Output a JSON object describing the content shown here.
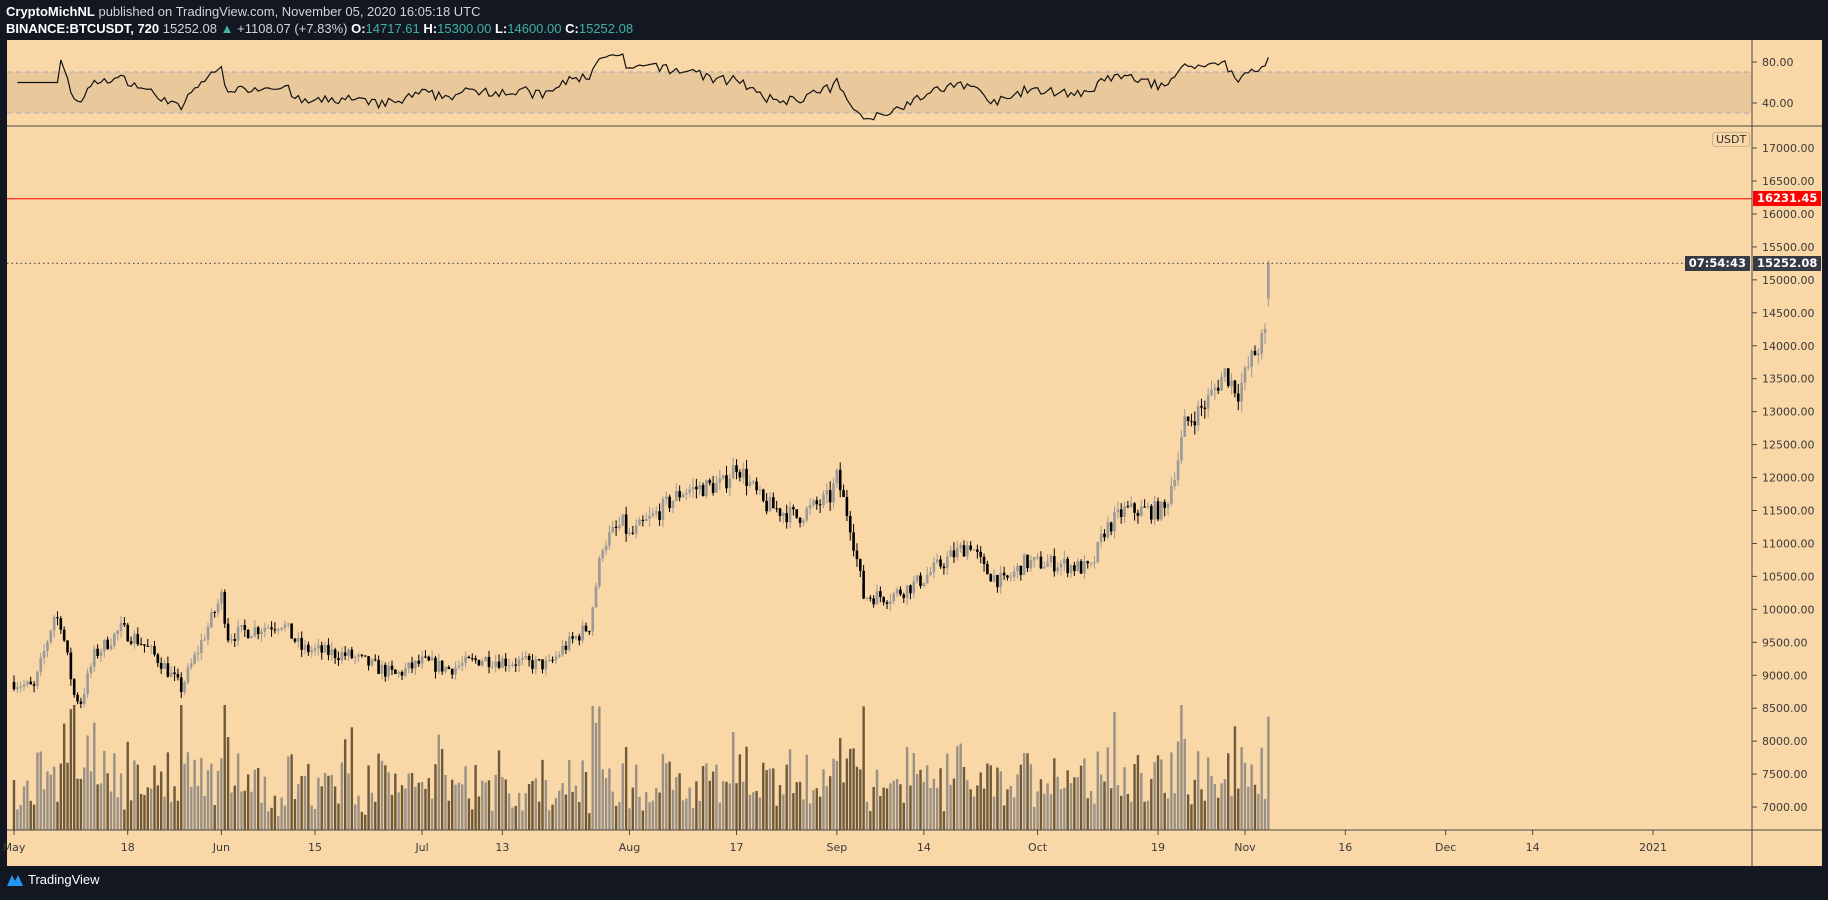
{
  "header": {
    "author": "CryptoMichNL",
    "published": "published on TradingView.com, November 05, 2020 16:05:18 UTC",
    "symbol": "BINANCE:BTCUSDT, 720",
    "last": "15252.08",
    "change": "+1108.07 (+7.83%)",
    "o_label": "O:",
    "o": "14717.61",
    "h_label": "H:",
    "h": "15300.00",
    "l_label": "L:",
    "l": "14600.00",
    "c_label": "C:",
    "c": "15252.08"
  },
  "price_axis": {
    "currency": "USDT",
    "ticks": [
      "17000.00",
      "16500.00",
      "16000.00",
      "15500.00",
      "15000.00",
      "14500.00",
      "14000.00",
      "13500.00",
      "13000.00",
      "12500.00",
      "12000.00",
      "11500.00",
      "11000.00",
      "10500.00",
      "10000.00",
      "9500.00",
      "9000.00",
      "8500.00",
      "8000.00",
      "7500.00",
      "7000.00"
    ],
    "alert_line": "16231.45",
    "current_price": "15252.08",
    "countdown": "07:54:43"
  },
  "rsi_axis": {
    "ticks": [
      "80.00",
      "40.00"
    ]
  },
  "time_axis": {
    "labels": [
      {
        "day": 0,
        "text": "May"
      },
      {
        "day": 17,
        "text": "18"
      },
      {
        "day": 31,
        "text": "Jun"
      },
      {
        "day": 45,
        "text": "15"
      },
      {
        "day": 61,
        "text": "Jul"
      },
      {
        "day": 73,
        "text": "13"
      },
      {
        "day": 92,
        "text": "Aug"
      },
      {
        "day": 108,
        "text": "17"
      },
      {
        "day": 123,
        "text": "Sep"
      },
      {
        "day": 136,
        "text": "14"
      },
      {
        "day": 153,
        "text": "Oct"
      },
      {
        "day": 171,
        "text": "19"
      },
      {
        "day": 184,
        "text": "Nov"
      },
      {
        "day": 199,
        "text": "16"
      },
      {
        "day": 214,
        "text": "Dec"
      },
      {
        "day": 227,
        "text": "14"
      },
      {
        "day": 245,
        "text": "2021"
      }
    ]
  },
  "colors": {
    "background": "#f9d7a6",
    "up": "#9a9a9a",
    "down": "#000000",
    "alert": "#ff0000",
    "rsi_band": "#e9c99c"
  },
  "chart_data": {
    "type": "candlestick",
    "interval": "12h",
    "price_range": [
      6700,
      17200
    ],
    "keypoints_day_close": [
      [
        0,
        8900
      ],
      [
        3,
        8800
      ],
      [
        6,
        9900
      ],
      [
        7,
        9800
      ],
      [
        9,
        8700
      ],
      [
        10,
        8600
      ],
      [
        12,
        9300
      ],
      [
        16,
        9700
      ],
      [
        19,
        9500
      ],
      [
        22,
        9200
      ],
      [
        25,
        8800
      ],
      [
        28,
        9500
      ],
      [
        31,
        10200
      ],
      [
        32,
        9600
      ],
      [
        40,
        9800
      ],
      [
        43,
        9400
      ],
      [
        50,
        9300
      ],
      [
        57,
        9000
      ],
      [
        61,
        9200
      ],
      [
        65,
        9100
      ],
      [
        70,
        9250
      ],
      [
        80,
        9150
      ],
      [
        82,
        9400
      ],
      [
        86,
        9750
      ],
      [
        88,
        11000
      ],
      [
        91,
        11300
      ],
      [
        92,
        11100
      ],
      [
        100,
        11800
      ],
      [
        106,
        11900
      ],
      [
        108,
        12200
      ],
      [
        112,
        11600
      ],
      [
        117,
        11400
      ],
      [
        122,
        11700
      ],
      [
        123,
        12000
      ],
      [
        125,
        11300
      ],
      [
        127,
        10200
      ],
      [
        131,
        10200
      ],
      [
        135,
        10400
      ],
      [
        140,
        10800
      ],
      [
        143,
        11000
      ],
      [
        145,
        10600
      ],
      [
        148,
        10400
      ],
      [
        151,
        10700
      ],
      [
        156,
        10700
      ],
      [
        161,
        10600
      ],
      [
        163,
        11200
      ],
      [
        166,
        11500
      ],
      [
        172,
        11500
      ],
      [
        174,
        12300
      ],
      [
        175,
        12800
      ],
      [
        178,
        13100
      ],
      [
        181,
        13600
      ],
      [
        183,
        13300
      ],
      [
        185,
        13800
      ],
      [
        187,
        14150
      ],
      [
        188,
        15252.08
      ]
    ],
    "last_candle": {
      "o": 14717.61,
      "h": 15300.0,
      "l": 14600.0,
      "c": 15252.08
    },
    "rsi_period": 14,
    "rsi_levels": [
      30,
      70
    ]
  },
  "footer": {
    "brand": "TradingView"
  }
}
